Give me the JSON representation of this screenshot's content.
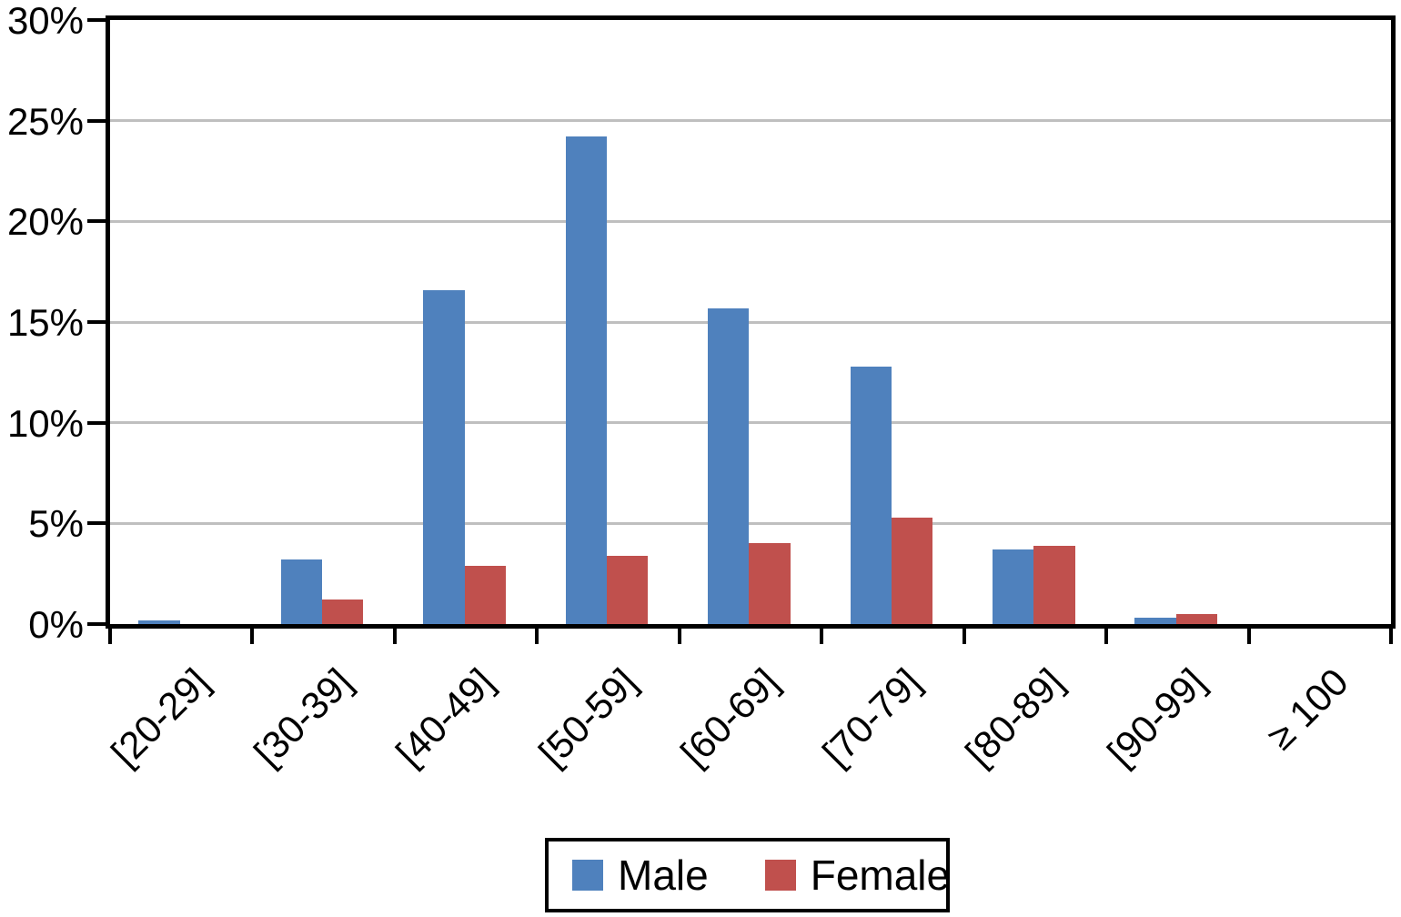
{
  "chart_data": {
    "type": "bar",
    "title": "",
    "xlabel": "",
    "ylabel": "",
    "categories": [
      "[20-29]",
      "[30-39]",
      "[40-49]",
      "[50-59]",
      "[60-69]",
      "[70-79]",
      "[80-89]",
      "[90-99]",
      "≥ 100"
    ],
    "series": [
      {
        "name": "Male",
        "color": "#4F81BD",
        "values": [
          0.2,
          3.2,
          16.6,
          24.2,
          15.7,
          12.8,
          3.7,
          0.3,
          0
        ]
      },
      {
        "name": "Female",
        "color": "#C0504D",
        "values": [
          0,
          1.2,
          2.9,
          3.4,
          4.0,
          5.3,
          3.9,
          0.5,
          0
        ]
      }
    ],
    "ylim": [
      0,
      30
    ],
    "y_ticks": [
      {
        "value": 0,
        "label": "0%"
      },
      {
        "value": 5,
        "label": "5%"
      },
      {
        "value": 10,
        "label": "10%"
      },
      {
        "value": 15,
        "label": "15%"
      },
      {
        "value": 20,
        "label": "20%"
      },
      {
        "value": 25,
        "label": "25%"
      },
      {
        "value": 30,
        "label": "30%"
      }
    ],
    "grid": true,
    "legend_position": "bottom"
  },
  "colors": {
    "male_bar": "#4F81BD",
    "female_bar": "#C0504D",
    "gridline": "#BFBFBF",
    "axis": "#000000",
    "background": "#FFFFFF"
  }
}
